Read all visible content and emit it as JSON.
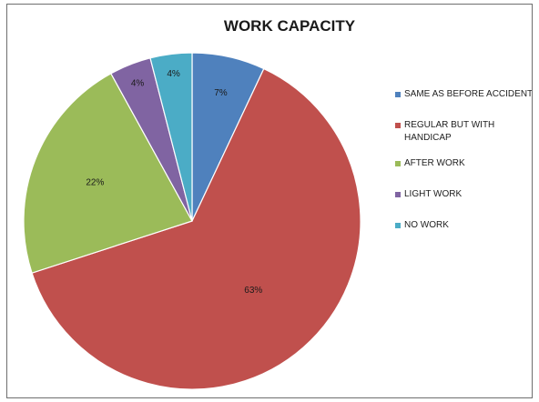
{
  "chart_data": {
    "type": "pie",
    "title": "WORK CAPACITY",
    "slices": [
      {
        "label": "SAME AS BEFORE ACCIDENT",
        "value": 7,
        "display": "7%",
        "color": "#4f81bd"
      },
      {
        "label": "REGULAR BUT WITH HANDICAP",
        "value": 63,
        "display": "63%",
        "color": "#c0504d"
      },
      {
        "label": "AFTER WORK",
        "value": 22,
        "display": "22%",
        "color": "#9bbb59"
      },
      {
        "label": "LIGHT WORK",
        "value": 4,
        "display": "4%",
        "color": "#8064a2"
      },
      {
        "label": "NO WORK",
        "value": 4,
        "display": "4%",
        "color": "#4bacc6"
      }
    ],
    "legend_position": "right"
  }
}
